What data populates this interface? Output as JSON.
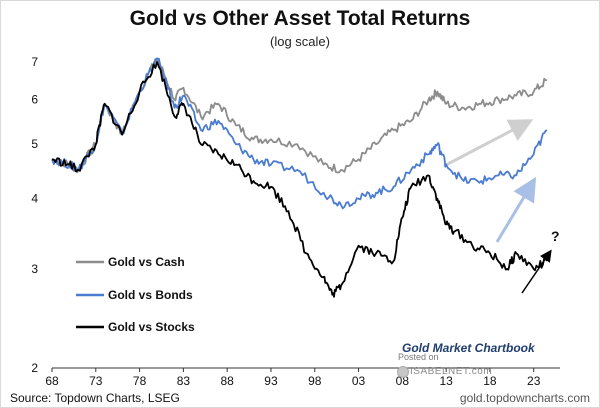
{
  "chart_data": {
    "type": "line",
    "title": "Gold vs Other Asset Total Returns",
    "subtitle": "(log scale)",
    "yscale": "log",
    "ylim": [
      2,
      7
    ],
    "y_ticks": [
      "2",
      "3",
      "4",
      "5",
      "6",
      "7"
    ],
    "xlim": [
      1968,
      2026
    ],
    "x_ticks": [
      "68",
      "73",
      "78",
      "83",
      "88",
      "93",
      "98",
      "03",
      "08",
      "13",
      "18",
      "23"
    ],
    "series": [
      {
        "name": "Gold vs Cash",
        "color": "#8c8c8c",
        "x": [
          1968,
          1970,
          1971,
          1973,
          1974,
          1976,
          1978,
          1980,
          1982,
          1983,
          1985,
          1987,
          1989,
          1991,
          1993,
          1996,
          1999,
          2001,
          2003,
          2005,
          2007,
          2009,
          2011,
          2012,
          2013,
          2015,
          2017,
          2019,
          2021,
          2023,
          2024.5
        ],
        "y": [
          4.7,
          4.6,
          4.5,
          5.0,
          5.9,
          5.2,
          6.2,
          7.1,
          6.0,
          6.3,
          5.6,
          5.9,
          5.4,
          5.1,
          5.1,
          5.0,
          4.6,
          4.5,
          4.7,
          5.0,
          5.3,
          5.5,
          6.0,
          6.2,
          5.9,
          5.8,
          5.9,
          6.0,
          6.1,
          6.2,
          6.5
        ]
      },
      {
        "name": "Gold vs Bonds",
        "color": "#4a7bd0",
        "x": [
          1968,
          1970,
          1971,
          1973,
          1974,
          1976,
          1978,
          1980,
          1982,
          1983,
          1985,
          1987,
          1989,
          1991,
          1993,
          1996,
          1999,
          2001,
          2003,
          2005,
          2007,
          2009,
          2011,
          2012,
          2013,
          2015,
          2017,
          2019,
          2021,
          2023,
          2024.5
        ],
        "y": [
          4.7,
          4.6,
          4.5,
          5.0,
          5.9,
          5.2,
          6.2,
          7.1,
          5.8,
          6.1,
          5.3,
          5.5,
          5.0,
          4.7,
          4.6,
          4.5,
          4.1,
          3.9,
          4.0,
          4.1,
          4.2,
          4.5,
          4.8,
          5.0,
          4.6,
          4.3,
          4.3,
          4.4,
          4.4,
          4.8,
          5.3
        ]
      },
      {
        "name": "Gold vs Stocks",
        "color": "#000000",
        "x": [
          1968,
          1970,
          1971,
          1973,
          1974,
          1976,
          1978,
          1980,
          1982,
          1983,
          1985,
          1987,
          1989,
          1991,
          1993,
          1995,
          1997,
          1999,
          2000,
          2001,
          2003,
          2005,
          2007,
          2008,
          2009,
          2011,
          2012,
          2013,
          2014,
          2016,
          2018,
          2020,
          2021,
          2023,
          2024.5
        ],
        "y": [
          4.7,
          4.6,
          4.5,
          5.0,
          5.9,
          5.2,
          6.2,
          7.0,
          5.6,
          5.9,
          5.0,
          4.8,
          4.6,
          4.3,
          4.2,
          3.8,
          3.2,
          2.9,
          2.7,
          2.8,
          3.3,
          3.2,
          3.1,
          3.7,
          4.2,
          4.4,
          4.0,
          3.6,
          3.5,
          3.3,
          3.2,
          3.0,
          3.2,
          3.0,
          3.1
        ]
      }
    ],
    "legend_position": "left"
  },
  "source": "Source: Topdown Charts, LSEG",
  "website": "gold.topdowncharts.com",
  "brand": "Gold Market Chartbook",
  "posted_on": "Posted on",
  "isabelnet": "ISABELNET.com",
  "question_mark": "?"
}
